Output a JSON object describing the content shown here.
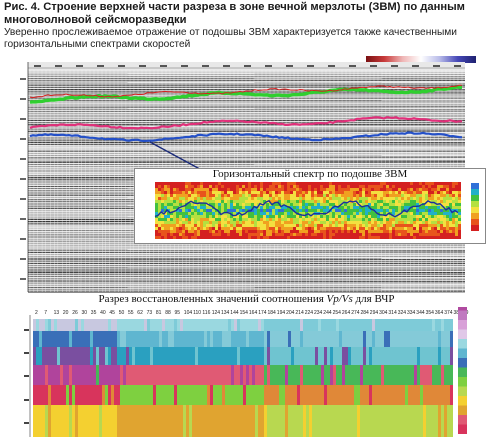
{
  "caption": {
    "title": "Рис. 4. Строение верхней части разреза в зоне вечной мерзлоты (ЗВМ) по данным многоволновой сейсморазведки",
    "subtitle": "Уверенно прослеживаемое отражение от подошвы ЗВМ характеризуется также качественными горизонтальными спектрами скоростей"
  },
  "seismic_section": {
    "annotation_label": "Горизонтальный спектр по подошве ЗВМ"
  },
  "vpvs_section": {
    "title_prefix": "Разрез восстановленных значений соотношения ",
    "title_ratio": "Vp/Vs",
    "title_suffix": " для ВЧР",
    "trace_labels": [
      "2",
      "7",
      "13",
      "20",
      "26",
      "30",
      "35",
      "40",
      "45",
      "50",
      "55",
      "62",
      "73",
      "81",
      "88",
      "95",
      "104",
      "110",
      "116",
      "124",
      "134",
      "144",
      "154",
      "164",
      "174",
      "184",
      "194",
      "204",
      "214",
      "224",
      "234",
      "244",
      "254",
      "264",
      "274",
      "284",
      "294",
      "304",
      "314",
      "324",
      "334",
      "344",
      "354",
      "364",
      "374",
      "384",
      "39"
    ]
  },
  "colors": {
    "green_horizon": "#2fcf2f",
    "magenta_horizon": "#e0307a",
    "blue_horizon": "#2450c8"
  }
}
